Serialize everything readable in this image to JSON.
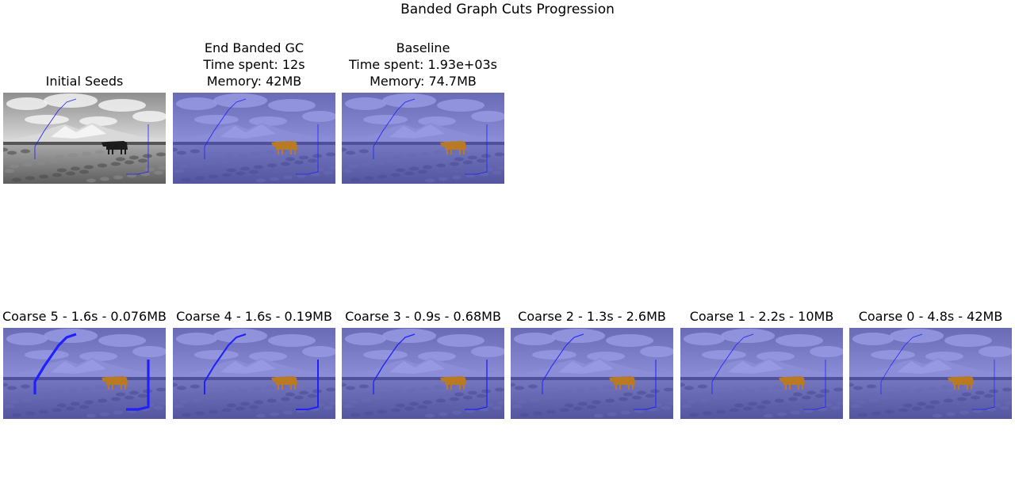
{
  "figure": {
    "title": "Banded Graph Cuts Progression"
  },
  "top_row": [
    {
      "title_lines": [
        "Initial Seeds"
      ],
      "overlay": false,
      "seed_width": 0.8
    },
    {
      "title_lines": [
        "End Banded GC",
        "Time spent: 12s",
        "Memory: 42MB"
      ],
      "overlay": true,
      "seed_width": 0.8
    },
    {
      "title_lines": [
        "Baseline",
        "Time spent: 1.93e+03s",
        "Memory: 74.7MB"
      ],
      "overlay": true,
      "seed_width": 0.8
    }
  ],
  "bottom_row": [
    {
      "title_lines": [
        "Coarse 5 - 1.6s - 0.076MB"
      ],
      "overlay": true,
      "seed_width": 3.2
    },
    {
      "title_lines": [
        "Coarse 4 - 1.6s - 0.19MB"
      ],
      "overlay": true,
      "seed_width": 2.0
    },
    {
      "title_lines": [
        "Coarse 3 - 0.9s - 0.68MB"
      ],
      "overlay": true,
      "seed_width": 1.3
    },
    {
      "title_lines": [
        "Coarse 2 - 1.3s - 2.6MB"
      ],
      "overlay": true,
      "seed_width": 1.0
    },
    {
      "title_lines": [
        "Coarse 1 - 2.2s - 10MB"
      ],
      "overlay": true,
      "seed_width": 0.8
    },
    {
      "title_lines": [
        "Coarse 0 - 4.8s - 42MB"
      ],
      "overlay": true,
      "seed_width": 0.7
    }
  ],
  "colors": {
    "background_overlay": "#4a4fd6",
    "foreground_cow": "#b87a22",
    "seed_line": "#2020ff"
  }
}
